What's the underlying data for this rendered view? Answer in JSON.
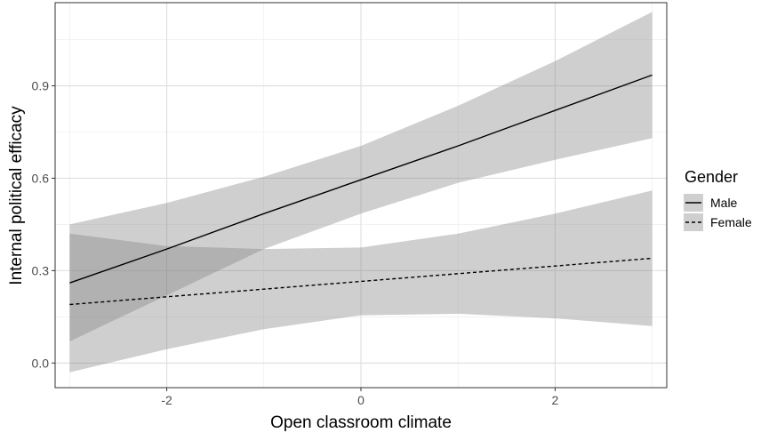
{
  "chart_data": {
    "type": "line",
    "title": "",
    "xlabel": "Open classroom climate",
    "ylabel": "Internal political efficacy",
    "xlim": [
      -3.15,
      3.15
    ],
    "ylim": [
      -0.08,
      1.17
    ],
    "x_ticks": [
      -2,
      0,
      2
    ],
    "x_tick_labels": [
      "-2",
      "0",
      "2"
    ],
    "y_ticks": [
      0.0,
      0.3,
      0.6,
      0.9
    ],
    "y_tick_labels": [
      "0.0",
      "0.3",
      "0.6",
      "0.9"
    ],
    "grid": true,
    "legend": {
      "title": "Gender",
      "position": "right"
    },
    "series": [
      {
        "name": "Male",
        "linestyle": "solid",
        "line_color": "#000000",
        "band_color": "#bdbdbd",
        "x": [
          -3,
          -2,
          -1,
          0,
          1,
          2,
          3
        ],
        "y": [
          0.26,
          0.37,
          0.485,
          0.595,
          0.705,
          0.82,
          0.935
        ],
        "lower": [
          0.07,
          0.22,
          0.37,
          0.485,
          0.585,
          0.66,
          0.73
        ],
        "upper": [
          0.45,
          0.52,
          0.605,
          0.705,
          0.835,
          0.98,
          1.14
        ]
      },
      {
        "name": "Female",
        "linestyle": "dashed",
        "line_color": "#000000",
        "band_color": "#bdbdbd",
        "x": [
          -3,
          -2,
          -1,
          0,
          1,
          2,
          3
        ],
        "y": [
          0.19,
          0.215,
          0.24,
          0.265,
          0.29,
          0.315,
          0.34
        ],
        "lower": [
          -0.03,
          0.045,
          0.11,
          0.155,
          0.16,
          0.145,
          0.12
        ],
        "upper": [
          0.42,
          0.38,
          0.37,
          0.375,
          0.42,
          0.485,
          0.56
        ]
      }
    ]
  }
}
